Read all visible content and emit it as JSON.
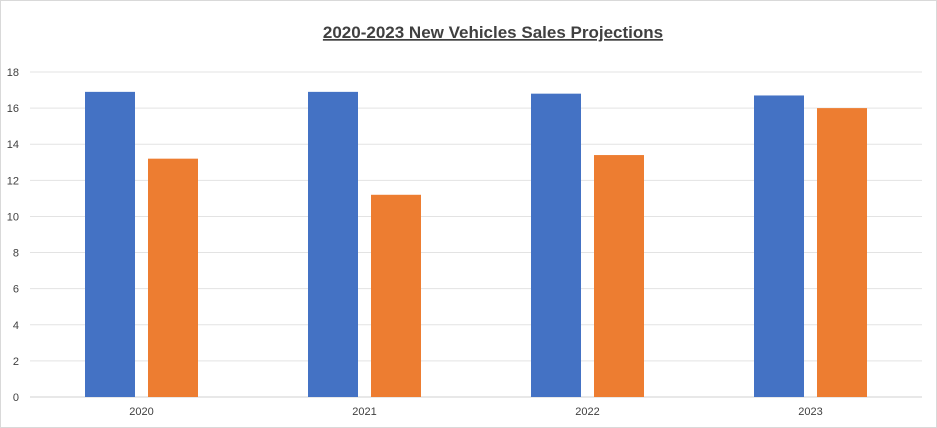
{
  "chart_data": {
    "type": "bar",
    "title": "2020-2023  New Vehicles Sales Projections",
    "xlabel": "",
    "ylabel": "",
    "categories": [
      "2020",
      "2021",
      "2022",
      "2023"
    ],
    "series": [
      {
        "values": [
          16.9,
          16.9,
          16.8,
          16.7
        ],
        "color": "#4472C4"
      },
      {
        "values": [
          13.2,
          11.2,
          13.4,
          16.0
        ],
        "color": "#ED7D31"
      }
    ],
    "ylim": [
      0,
      18
    ],
    "yticks": [
      "0",
      "2",
      "4",
      "6",
      "8",
      "10",
      "12",
      "14",
      "16",
      "18"
    ],
    "grid": true,
    "legend": "none"
  }
}
